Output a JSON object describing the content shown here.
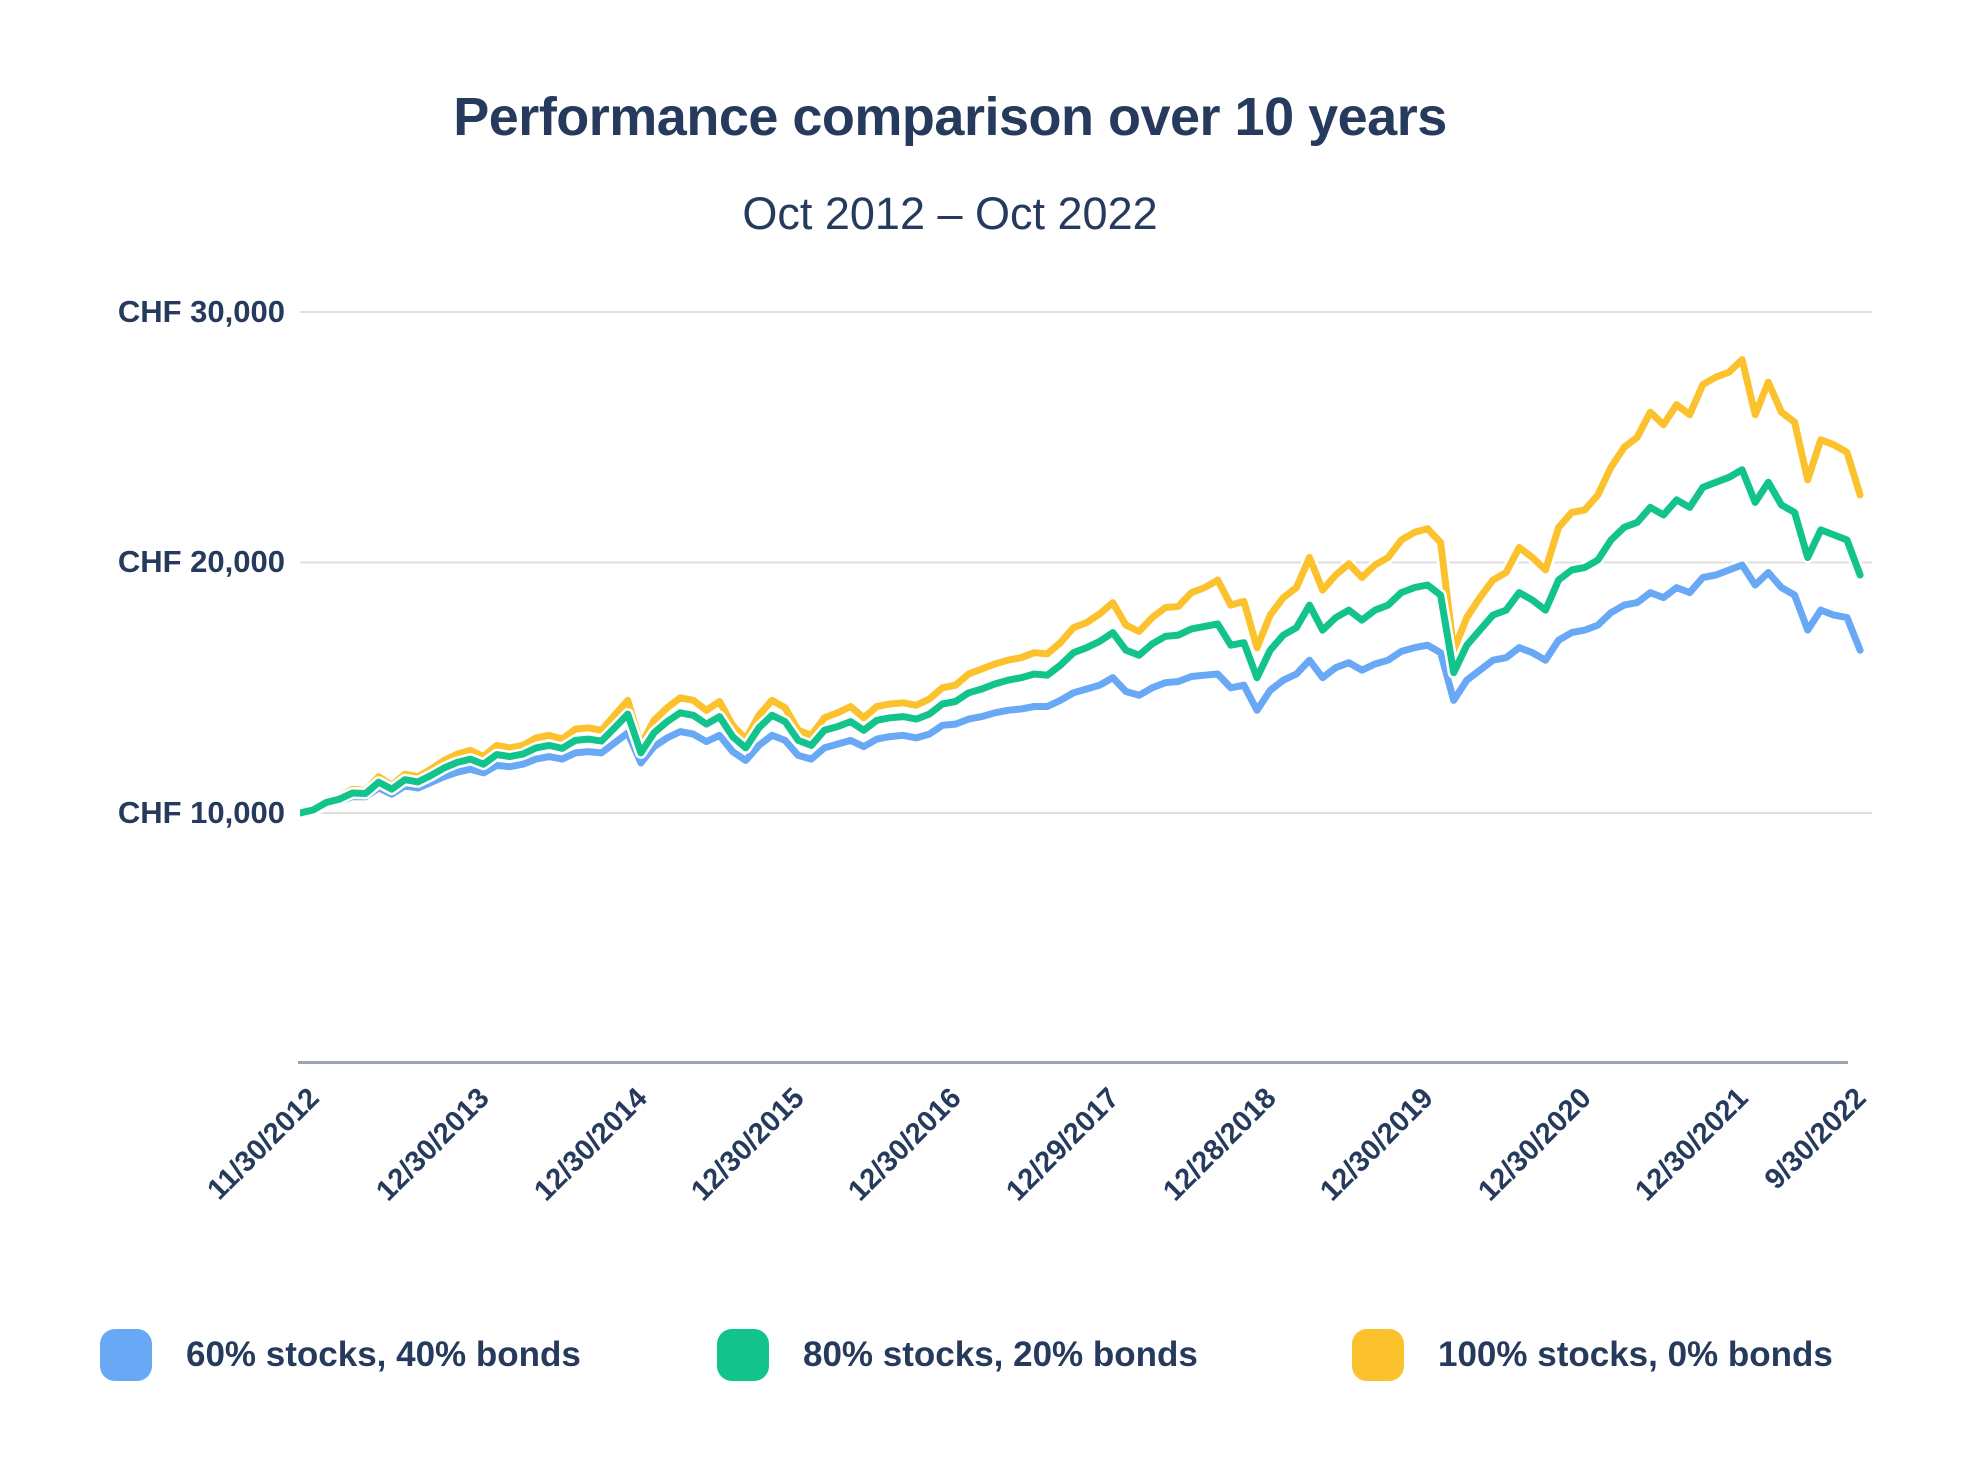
{
  "title": "Performance comparison over 10 years",
  "subtitle": "Oct 2012 – Oct 2022",
  "colors": {
    "text_navy": "#253a5c",
    "gridline": "#dfdfdf",
    "axis_line": "#99a3b1",
    "background": "#ffffff",
    "series_blue": "#69a8f4",
    "series_green": "#12c38c",
    "series_yellow": "#fbc22d"
  },
  "chart_data": {
    "type": "line",
    "title": "Performance comparison over 10 years",
    "subtitle": "Oct 2012 – Oct 2022",
    "currency": "CHF",
    "x_frequency": "monthly",
    "x_start": "11/30/2012",
    "x_end": "10/2022",
    "ylim": [
      10000,
      30000
    ],
    "grid": "horizontal-only",
    "legend_position": "bottom",
    "y_ticks": [
      {
        "label": "CHF 30,000",
        "value": 30000
      },
      {
        "label": "CHF 20,000",
        "value": 20000
      },
      {
        "label": "CHF 10,000",
        "value": 10000
      }
    ],
    "x_tick_labels": [
      "11/30/2012",
      "12/30/2013",
      "12/30/2014",
      "12/30/2015",
      "12/30/2016",
      "12/29/2017",
      "12/28/2018",
      "12/30/2019",
      "12/30/2020",
      "12/30/2021",
      "9/30/2022"
    ],
    "x_tick_month_index": [
      0,
      13,
      25,
      37,
      49,
      61,
      73,
      85,
      97,
      109,
      118
    ],
    "series": [
      {
        "name": "60% stocks, 40% bonds",
        "color": "#69a8f4",
        "values": [
          10000,
          10100,
          10350,
          10450,
          10650,
          10650,
          11000,
          10750,
          11080,
          11000,
          11220,
          11450,
          11630,
          11750,
          11600,
          11900,
          11850,
          11950,
          12150,
          12250,
          12150,
          12400,
          12450,
          12400,
          12800,
          13200,
          12000,
          12650,
          13000,
          13250,
          13150,
          12850,
          13100,
          12450,
          12100,
          12700,
          13100,
          12900,
          12300,
          12150,
          12600,
          12750,
          12900,
          12650,
          12950,
          13050,
          13100,
          13000,
          13150,
          13500,
          13550,
          13750,
          13850,
          14000,
          14100,
          14150,
          14250,
          14250,
          14500,
          14800,
          14950,
          15100,
          15400,
          14850,
          14700,
          15000,
          15200,
          15250,
          15450,
          15500,
          15550,
          15000,
          15100,
          14100,
          14900,
          15300,
          15550,
          16100,
          15400,
          15800,
          16000,
          15700,
          15950,
          16100,
          16450,
          16600,
          16700,
          16400,
          14500,
          15300,
          15700,
          16100,
          16200,
          16600,
          16400,
          16100,
          16900,
          17200,
          17300,
          17500,
          18000,
          18300,
          18400,
          18800,
          18600,
          19000,
          18800,
          19400,
          19500,
          19700,
          19900,
          19100,
          19600,
          19000,
          18700,
          17300,
          18100,
          17900,
          17800,
          16500
        ]
      },
      {
        "name": "80% stocks, 20% bonds",
        "color": "#12c38c",
        "values": [
          10000,
          10120,
          10420,
          10550,
          10800,
          10780,
          11230,
          10950,
          11330,
          11240,
          11500,
          11800,
          12020,
          12150,
          11950,
          12330,
          12250,
          12350,
          12600,
          12700,
          12580,
          12900,
          12950,
          12870,
          13400,
          13950,
          12400,
          13200,
          13650,
          14000,
          13900,
          13550,
          13850,
          13050,
          12600,
          13400,
          13900,
          13650,
          12900,
          12700,
          13300,
          13450,
          13650,
          13300,
          13700,
          13800,
          13850,
          13750,
          13950,
          14350,
          14450,
          14800,
          14950,
          15150,
          15300,
          15400,
          15550,
          15500,
          15900,
          16400,
          16600,
          16850,
          17200,
          16500,
          16300,
          16750,
          17050,
          17100,
          17350,
          17450,
          17550,
          16700,
          16800,
          15400,
          16500,
          17100,
          17400,
          18300,
          17300,
          17800,
          18100,
          17700,
          18100,
          18300,
          18800,
          19000,
          19100,
          18700,
          15600,
          16700,
          17300,
          17900,
          18100,
          18800,
          18500,
          18100,
          19300,
          19700,
          19800,
          20100,
          20900,
          21400,
          21600,
          22200,
          21900,
          22500,
          22200,
          23000,
          23200,
          23400,
          23700,
          22400,
          23200,
          22300,
          22000,
          20200,
          21300,
          21100,
          20900,
          19500
        ]
      },
      {
        "name": "100% stocks, 0% bonds",
        "color": "#fbc22d",
        "values": [
          10000,
          10150,
          10500,
          10650,
          10950,
          10900,
          11450,
          11100,
          11550,
          11450,
          11750,
          12100,
          12350,
          12500,
          12250,
          12700,
          12600,
          12700,
          13000,
          13100,
          12950,
          13350,
          13400,
          13300,
          13900,
          14500,
          12700,
          13700,
          14200,
          14600,
          14500,
          14100,
          14450,
          13500,
          12950,
          13900,
          14500,
          14200,
          13300,
          13100,
          13800,
          14000,
          14250,
          13800,
          14250,
          14350,
          14400,
          14300,
          14550,
          15000,
          15100,
          15550,
          15750,
          15950,
          16100,
          16200,
          16400,
          16350,
          16800,
          17400,
          17600,
          17950,
          18400,
          17500,
          17250,
          17800,
          18200,
          18250,
          18800,
          19000,
          19300,
          18300,
          18450,
          16600,
          17900,
          18600,
          19000,
          20200,
          18900,
          19500,
          19950,
          19400,
          19900,
          20200,
          20900,
          21200,
          21350,
          20800,
          16500,
          17800,
          18600,
          19300,
          19600,
          20600,
          20200,
          19700,
          21400,
          22000,
          22100,
          22700,
          23800,
          24600,
          25000,
          26000,
          25500,
          26300,
          25900,
          27100,
          27400,
          27600,
          28100,
          25900,
          27200,
          26000,
          25600,
          23300,
          24900,
          24700,
          24400,
          22700
        ]
      }
    ]
  },
  "legend": {
    "items": [
      {
        "label": "60% stocks, 40% bonds",
        "color": "#69a8f4"
      },
      {
        "label": "80% stocks, 20% bonds",
        "color": "#12c38c"
      },
      {
        "label": "100% stocks, 0% bonds",
        "color": "#fbc22d"
      }
    ]
  }
}
